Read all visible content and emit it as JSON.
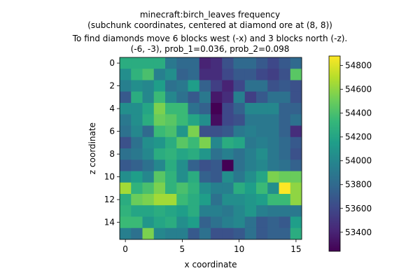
{
  "chart_data": {
    "type": "heatmap",
    "title_lines": [
      "minecraft:birch_leaves frequency",
      "(subchunk coordinates, centered at diamond ore at (8, 8))",
      "To find diamonds move 6 blocks west (-x) and 3 blocks north (-z).",
      "(-6, -3), prob_1=0.036, prob_2=0.098"
    ],
    "xlabel": "x coordinate",
    "ylabel": "z coordinate",
    "x_ticks": [
      0,
      5,
      10,
      15
    ],
    "y_ticks": [
      0,
      2,
      4,
      6,
      8,
      10,
      12,
      14
    ],
    "colorbar_ticks": [
      53400,
      53600,
      53800,
      54000,
      54200,
      54400,
      54600,
      54800
    ],
    "colorbar_range": [
      53240,
      54880
    ],
    "colormap": [
      "#440154",
      "#482878",
      "#3e4989",
      "#31688e",
      "#26828e",
      "#1f9e89",
      "#35b779",
      "#6ece58",
      "#b5de2b",
      "#fde725"
    ],
    "grid_size": 16,
    "values": [
      [
        54250,
        54250,
        54250,
        54250,
        53900,
        53800,
        53800,
        53400,
        53450,
        53650,
        53800,
        53800,
        53700,
        53600,
        53700,
        53800
      ],
      [
        54050,
        54300,
        54400,
        53950,
        54050,
        53750,
        53800,
        53450,
        53450,
        53600,
        53700,
        53700,
        53600,
        53550,
        53650,
        54450
      ],
      [
        53950,
        54050,
        54000,
        54150,
        53850,
        53900,
        54150,
        53750,
        53550,
        53400,
        53600,
        53850,
        53850,
        53650,
        53700,
        53650
      ],
      [
        53700,
        54250,
        54000,
        54350,
        54000,
        53850,
        53700,
        53900,
        53350,
        53450,
        53950,
        53550,
        53700,
        53850,
        53850,
        53650
      ],
      [
        54050,
        54050,
        54200,
        54550,
        54350,
        54350,
        53850,
        53750,
        53240,
        53600,
        53750,
        54000,
        54000,
        54000,
        53750,
        53750
      ],
      [
        53900,
        54050,
        54250,
        54500,
        54450,
        54350,
        54200,
        54050,
        53300,
        53600,
        53650,
        53900,
        53900,
        53900,
        53750,
        53850
      ],
      [
        53850,
        54000,
        53800,
        54350,
        54400,
        54100,
        54550,
        53650,
        53650,
        53700,
        53900,
        53950,
        53900,
        53900,
        53750,
        53450
      ],
      [
        53650,
        53850,
        54050,
        54100,
        54250,
        54450,
        54350,
        54550,
        54000,
        54250,
        54200,
        53900,
        53950,
        53900,
        53800,
        53700
      ],
      [
        53850,
        53900,
        54000,
        54250,
        54300,
        54200,
        54250,
        54100,
        53850,
        53950,
        53850,
        53950,
        54050,
        53900,
        53800,
        53650
      ],
      [
        53700,
        53750,
        53850,
        54000,
        54250,
        54050,
        53750,
        53650,
        53700,
        53240,
        53850,
        53950,
        54000,
        53900,
        53850,
        53750
      ],
      [
        54050,
        54150,
        54000,
        54450,
        54300,
        54050,
        54250,
        53750,
        53700,
        54050,
        53900,
        54050,
        54200,
        54550,
        54500,
        54500
      ],
      [
        54650,
        54300,
        54400,
        54550,
        54300,
        54400,
        54300,
        54050,
        53950,
        53950,
        54250,
        54150,
        54350,
        54050,
        54880,
        54600
      ],
      [
        54250,
        54500,
        54550,
        54650,
        54650,
        54350,
        54250,
        54150,
        53850,
        54050,
        54050,
        54100,
        54150,
        54350,
        54350,
        54600
      ],
      [
        54300,
        54200,
        54200,
        54250,
        54200,
        54150,
        54250,
        53950,
        53950,
        53900,
        54000,
        54100,
        53950,
        53900,
        53900,
        53900
      ],
      [
        54350,
        54350,
        54100,
        54200,
        54250,
        54050,
        54150,
        53750,
        53850,
        53950,
        54000,
        53850,
        53700,
        53750,
        53700,
        54150
      ],
      [
        53950,
        53850,
        54550,
        54000,
        53950,
        53950,
        53700,
        53850,
        53650,
        53650,
        53700,
        53850,
        53700,
        53750,
        53750,
        54250
      ]
    ]
  }
}
